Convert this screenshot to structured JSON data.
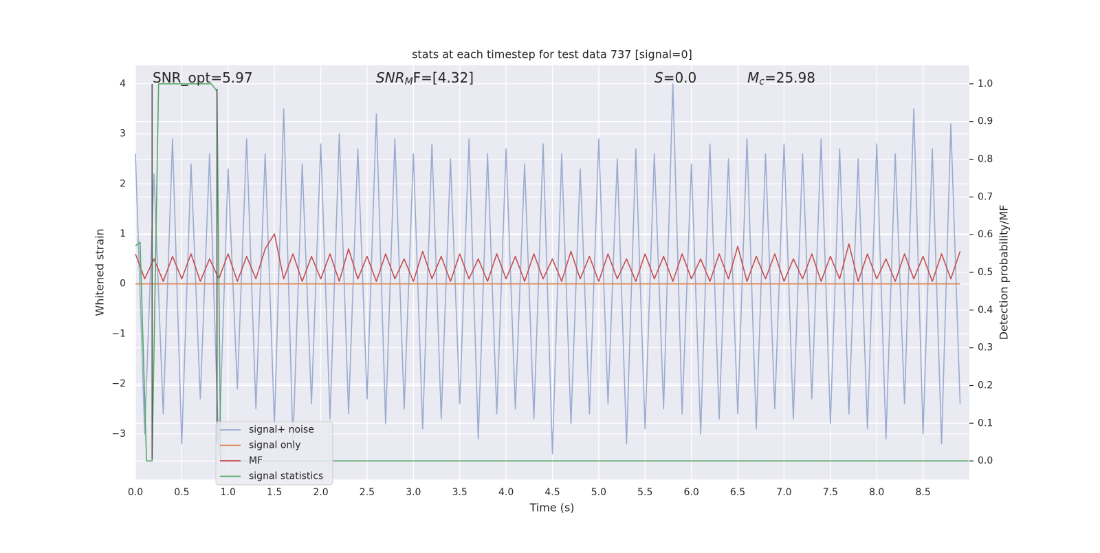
{
  "chart_data": {
    "type": "line",
    "title": "stats at each timestep for test data 737 [signal=0]",
    "xlabel": "Time (s)",
    "ylabel": "Whitened strain",
    "y2label": "Detection probability/MF",
    "xlim": [
      0,
      9.0
    ],
    "ylim": [
      -3.91,
      4.37
    ],
    "y2lim": [
      -0.049,
      1.049
    ],
    "xticks": [
      {
        "value": 0,
        "label": "0.0"
      },
      {
        "value": 0.5,
        "label": "0.5"
      },
      {
        "value": 1,
        "label": "1.0"
      },
      {
        "value": 1.5,
        "label": "1.5"
      },
      {
        "value": 2,
        "label": "2.0"
      },
      {
        "value": 2.5,
        "label": "2.5"
      },
      {
        "value": 3,
        "label": "3.0"
      },
      {
        "value": 3.5,
        "label": "3.5"
      },
      {
        "value": 4,
        "label": "4.0"
      },
      {
        "value": 4.5,
        "label": "4.5"
      },
      {
        "value": 5,
        "label": "5.0"
      },
      {
        "value": 5.5,
        "label": "5.5"
      },
      {
        "value": 6,
        "label": "6.0"
      },
      {
        "value": 6.5,
        "label": "6.5"
      },
      {
        "value": 7,
        "label": "7.0"
      },
      {
        "value": 7.5,
        "label": "7.5"
      },
      {
        "value": 8,
        "label": "8.0"
      },
      {
        "value": 8.5,
        "label": "8.5"
      }
    ],
    "yticks": [
      {
        "value": -3,
        "label": "−3"
      },
      {
        "value": -2,
        "label": "−2"
      },
      {
        "value": -1,
        "label": "−1"
      },
      0,
      1,
      2,
      3,
      4
    ],
    "y2ticks": [
      {
        "value": 0,
        "label": "0.0"
      },
      0.1,
      0.2,
      0.3,
      0.4,
      0.5,
      0.6,
      0.7,
      0.8,
      0.9,
      {
        "value": 1,
        "label": "1.0"
      }
    ],
    "grid": true,
    "legend": "lower left",
    "series": [
      {
        "name": "signal+ noise",
        "color": "#9aabcf",
        "x": [
          0.0,
          0.1,
          0.2,
          0.3,
          0.4,
          0.5,
          0.6,
          0.7,
          0.8,
          0.9,
          1.0,
          1.1,
          1.2,
          1.3,
          1.4,
          1.5,
          1.6,
          1.7,
          1.8,
          1.9,
          2.0,
          2.1,
          2.2,
          2.3,
          2.4,
          2.5,
          2.6,
          2.7,
          2.8,
          2.9,
          3.0,
          3.1,
          3.2,
          3.3,
          3.4,
          3.5,
          3.6,
          3.7,
          3.8,
          3.9,
          4.0,
          4.1,
          4.2,
          4.3,
          4.4,
          4.5,
          4.6,
          4.7,
          4.8,
          4.9,
          5.0,
          5.1,
          5.2,
          5.3,
          5.4,
          5.5,
          5.6,
          5.7,
          5.8,
          5.9,
          6.0,
          6.1,
          6.2,
          6.3,
          6.4,
          6.5,
          6.6,
          6.7,
          6.8,
          6.9,
          7.0,
          7.1,
          7.2,
          7.3,
          7.4,
          7.5,
          7.6,
          7.7,
          7.8,
          7.9,
          8.0,
          8.1,
          8.2,
          8.3,
          8.4,
          8.5,
          8.6,
          8.7,
          8.8,
          8.9
        ],
        "values": [
          2.6,
          -3.0,
          2.2,
          -2.6,
          2.9,
          -3.2,
          2.4,
          -2.3,
          2.6,
          -3.4,
          2.3,
          -2.1,
          2.9,
          -2.5,
          2.6,
          -2.8,
          3.5,
          -3.2,
          2.4,
          -2.4,
          2.8,
          -2.7,
          3.0,
          -2.6,
          2.7,
          -2.3,
          3.4,
          -2.8,
          2.9,
          -2.5,
          2.6,
          -2.9,
          2.8,
          -2.7,
          2.5,
          -2.4,
          2.9,
          -3.1,
          2.6,
          -2.6,
          2.7,
          -2.5,
          2.4,
          -2.7,
          2.8,
          -3.4,
          2.6,
          -2.8,
          2.3,
          -2.6,
          2.9,
          -2.4,
          2.5,
          -3.2,
          2.7,
          -2.9,
          2.6,
          -2.5,
          4.0,
          -2.6,
          2.4,
          -3.0,
          2.8,
          -2.7,
          2.5,
          -2.6,
          2.9,
          -2.9,
          2.6,
          -2.5,
          2.8,
          -2.7,
          2.6,
          -2.3,
          2.9,
          -2.8,
          2.7,
          -2.6,
          2.5,
          -2.9,
          2.8,
          -3.1,
          2.6,
          -2.4,
          3.5,
          -3.0,
          2.7,
          -3.2,
          3.2,
          -2.4
        ]
      },
      {
        "name": "signal only",
        "color": "#dd8452",
        "x": [
          0.0,
          8.9
        ],
        "values": [
          0,
          0
        ]
      },
      {
        "name": "MF",
        "color": "#c44e52",
        "x": [
          0.0,
          0.1,
          0.2,
          0.3,
          0.4,
          0.5,
          0.6,
          0.7,
          0.8,
          0.9,
          1.0,
          1.1,
          1.2,
          1.3,
          1.4,
          1.5,
          1.6,
          1.7,
          1.8,
          1.9,
          2.0,
          2.1,
          2.2,
          2.3,
          2.4,
          2.5,
          2.6,
          2.7,
          2.8,
          2.9,
          3.0,
          3.1,
          3.2,
          3.3,
          3.4,
          3.5,
          3.6,
          3.7,
          3.8,
          3.9,
          4.0,
          4.1,
          4.2,
          4.3,
          4.4,
          4.5,
          4.6,
          4.7,
          4.8,
          4.9,
          5.0,
          5.1,
          5.2,
          5.3,
          5.4,
          5.5,
          5.6,
          5.7,
          5.8,
          5.9,
          6.0,
          6.1,
          6.2,
          6.3,
          6.4,
          6.5,
          6.6,
          6.7,
          6.8,
          6.9,
          7.0,
          7.1,
          7.2,
          7.3,
          7.4,
          7.5,
          7.6,
          7.7,
          7.8,
          7.9,
          8.0,
          8.1,
          8.2,
          8.3,
          8.4,
          8.5,
          8.6,
          8.7,
          8.8,
          8.9
        ],
        "values": [
          0.6,
          0.1,
          0.5,
          0.05,
          0.55,
          0.1,
          0.6,
          0.05,
          0.5,
          0.1,
          0.6,
          0.05,
          0.55,
          0.1,
          0.7,
          1.0,
          0.1,
          0.6,
          0.05,
          0.55,
          0.1,
          0.6,
          0.05,
          0.7,
          0.1,
          0.55,
          0.05,
          0.6,
          0.1,
          0.5,
          0.05,
          0.65,
          0.1,
          0.55,
          0.05,
          0.6,
          0.1,
          0.5,
          0.05,
          0.6,
          0.1,
          0.55,
          0.05,
          0.6,
          0.1,
          0.5,
          0.05,
          0.65,
          0.1,
          0.55,
          0.05,
          0.6,
          0.1,
          0.5,
          0.05,
          0.6,
          0.1,
          0.55,
          0.05,
          0.6,
          0.1,
          0.5,
          0.05,
          0.6,
          0.1,
          0.75,
          0.05,
          0.55,
          0.1,
          0.6,
          0.05,
          0.5,
          0.1,
          0.6,
          0.05,
          0.55,
          0.1,
          0.8,
          0.05,
          0.6,
          0.1,
          0.5,
          0.05,
          0.6,
          0.1,
          0.55,
          0.05,
          0.6,
          0.1,
          0.65
        ]
      },
      {
        "name": "signal statistics",
        "color": "#55a868",
        "axis": "y2",
        "x": [
          0.0,
          0.05,
          0.12,
          0.18,
          0.25,
          0.82,
          0.88,
          0.92,
          8.99
        ],
        "values": [
          0.57,
          0.58,
          0.0,
          0.0,
          1.0,
          1.0,
          0.98,
          0.0,
          0.0
        ]
      }
    ],
    "vlines": [
      {
        "x": 0.18,
        "ymin": -3.5,
        "ymax": 4.0
      },
      {
        "x": 0.88,
        "ymin": -3.2,
        "ymax": 3.9
      }
    ],
    "annotations": [
      {
        "text": "SNR_opt=5.97"
      },
      {
        "italic": "SNR",
        "sub": "M",
        "tail": "F=[4.32]"
      },
      {
        "italic": "S",
        "tail": "=0.0"
      },
      {
        "italic": "M",
        "sub": "c",
        "tail": "=25.98"
      }
    ]
  }
}
